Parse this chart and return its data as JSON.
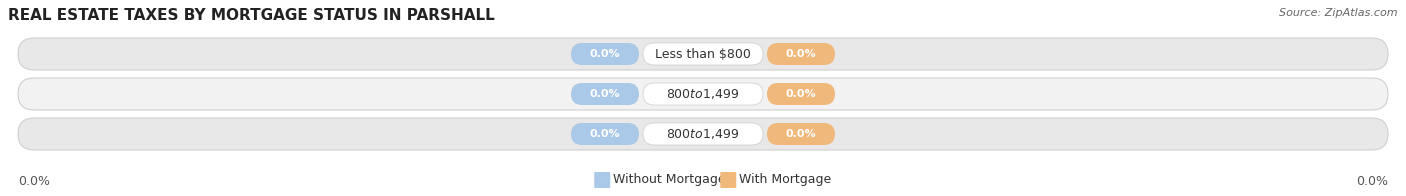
{
  "title": "REAL ESTATE TAXES BY MORTGAGE STATUS IN PARSHALL",
  "source": "Source: ZipAtlas.com",
  "categories": [
    "Less than $800",
    "$800 to $1,499",
    "$800 to $1,499"
  ],
  "without_mortgage_values": [
    0.0,
    0.0,
    0.0
  ],
  "with_mortgage_values": [
    0.0,
    0.0,
    0.0
  ],
  "without_mortgage_color": "#aac8e8",
  "with_mortgage_color": "#f0b87a",
  "bar_bg_light": "#f2f2f2",
  "bar_bg_dark": "#e8e8e8",
  "left_label": "0.0%",
  "right_label": "0.0%",
  "legend_without": "Without Mortgage",
  "legend_with": "With Mortgage",
  "title_fontsize": 11,
  "source_fontsize": 8,
  "value_fontsize": 8,
  "category_fontsize": 9,
  "legend_fontsize": 9
}
